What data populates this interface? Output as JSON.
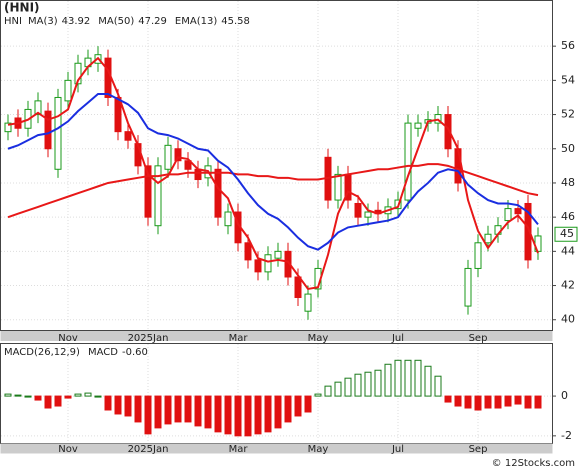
{
  "chart_data": {
    "type": "candlestick",
    "title": "(HNI)",
    "ticker": "HNI",
    "categories": [
      null,
      null,
      null,
      null,
      null,
      null,
      "Nov",
      null,
      null,
      null,
      null,
      null,
      null,
      null,
      "2025Jan",
      null,
      null,
      null,
      null,
      null,
      null,
      null,
      null,
      "Mar",
      null,
      null,
      null,
      null,
      null,
      null,
      null,
      "May",
      null,
      null,
      null,
      null,
      null,
      null,
      null,
      "Jul",
      null,
      null,
      null,
      null,
      null,
      null,
      null,
      "Sep",
      null,
      null,
      null,
      null,
      null,
      null
    ],
    "open": [
      51.0,
      51.8,
      51.2,
      52.0,
      52.2,
      48.8,
      52.8,
      53.8,
      54.8,
      55.0,
      55.3,
      53.0,
      51.0,
      50.3,
      49.0,
      45.5,
      48.8,
      50.0,
      49.3,
      48.8,
      48.3,
      48.8,
      45.5,
      46.3,
      44.5,
      43.5,
      42.8,
      43.6,
      44.0,
      42.5,
      40.5,
      41.8,
      49.5,
      47.0,
      48.5,
      46.8,
      46.0,
      46.4,
      46.2,
      46.5,
      47.0,
      51.2,
      51.5,
      51.5,
      52.0,
      50.0,
      40.8,
      43.0,
      44.5,
      45.0,
      45.8,
      46.5,
      46.8,
      44.0
    ],
    "high": [
      52.0,
      52.3,
      52.8,
      53.3,
      52.7,
      53.5,
      54.5,
      55.5,
      55.8,
      56.0,
      55.8,
      53.5,
      51.5,
      50.8,
      49.5,
      49.5,
      50.7,
      50.5,
      49.8,
      49.3,
      49.5,
      49.3,
      46.8,
      46.8,
      45.0,
      44.0,
      44.3,
      44.5,
      44.5,
      43.0,
      42.0,
      43.5,
      50.0,
      49.0,
      49.0,
      47.3,
      46.8,
      46.9,
      47.1,
      47.5,
      52.0,
      52.0,
      52.2,
      52.5,
      52.5,
      50.5,
      43.5,
      45.0,
      45.5,
      46.0,
      47.0,
      47.0,
      47.3,
      45.4
    ],
    "low": [
      50.5,
      50.7,
      50.7,
      51.5,
      49.5,
      48.3,
      52.3,
      53.3,
      54.3,
      54.5,
      52.5,
      50.5,
      50.0,
      48.5,
      45.5,
      45.0,
      48.3,
      48.8,
      48.3,
      47.7,
      47.8,
      45.5,
      45.0,
      44.0,
      43.0,
      42.3,
      42.3,
      43.1,
      42.0,
      40.8,
      40.0,
      41.3,
      46.5,
      46.5,
      46.5,
      45.5,
      45.5,
      45.7,
      45.7,
      46.0,
      46.5,
      50.7,
      51.0,
      51.0,
      49.5,
      47.5,
      40.3,
      42.5,
      44.0,
      44.5,
      45.3,
      45.7,
      43.0,
      43.5
    ],
    "close": [
      51.5,
      51.2,
      52.3,
      52.8,
      50.0,
      53.0,
      54.0,
      55.0,
      55.3,
      55.5,
      53.0,
      51.0,
      50.5,
      49.0,
      46.0,
      49.0,
      50.2,
      49.3,
      48.8,
      48.2,
      49.0,
      46.0,
      46.3,
      44.5,
      43.5,
      42.8,
      43.8,
      44.0,
      42.5,
      41.3,
      41.5,
      43.0,
      47.0,
      48.5,
      47.0,
      46.0,
      46.3,
      46.2,
      46.6,
      47.0,
      51.5,
      51.5,
      51.7,
      52.0,
      50.0,
      48.0,
      43.0,
      44.5,
      45.0,
      45.5,
      46.5,
      46.2,
      43.5,
      44.9
    ],
    "up_color": "#1a9a1a",
    "down_color": "#e01010",
    "series": [
      {
        "name": "MA(3)",
        "last": 43.92,
        "color": "#e81818",
        "values": [
          51.4,
          51.5,
          51.7,
          52.1,
          51.7,
          51.9,
          52.3,
          54.0,
          54.8,
          55.3,
          54.6,
          53.2,
          51.5,
          50.2,
          48.5,
          48.0,
          48.4,
          49.5,
          49.4,
          48.8,
          48.7,
          47.7,
          47.1,
          45.6,
          44.8,
          43.6,
          43.4,
          43.5,
          43.4,
          42.6,
          41.8,
          41.9,
          43.8,
          46.2,
          47.5,
          47.2,
          46.4,
          46.2,
          46.4,
          46.6,
          48.4,
          50.0,
          51.6,
          51.7,
          51.2,
          50.0,
          47.0,
          45.2,
          44.2,
          45.0,
          45.7,
          46.1,
          45.4,
          43.9
        ]
      },
      {
        "name": "MA(50)",
        "last": 47.29,
        "color": "#e81818",
        "values": [
          46.0,
          46.2,
          46.4,
          46.6,
          46.8,
          47.0,
          47.2,
          47.4,
          47.6,
          47.8,
          48.0,
          48.1,
          48.2,
          48.3,
          48.4,
          48.4,
          48.5,
          48.5,
          48.6,
          48.6,
          48.6,
          48.6,
          48.6,
          48.5,
          48.5,
          48.4,
          48.4,
          48.3,
          48.3,
          48.2,
          48.2,
          48.2,
          48.3,
          48.4,
          48.5,
          48.6,
          48.7,
          48.8,
          48.8,
          48.9,
          49.0,
          49.0,
          49.1,
          49.1,
          49.0,
          48.8,
          48.6,
          48.4,
          48.2,
          48.0,
          47.8,
          47.6,
          47.4,
          47.29
        ]
      },
      {
        "name": "EMA(13)",
        "last": 45.58,
        "color": "#1a2ee0",
        "values": [
          50.0,
          50.2,
          50.5,
          50.8,
          50.9,
          51.2,
          51.6,
          52.2,
          52.7,
          53.2,
          53.2,
          52.9,
          52.6,
          52.1,
          51.2,
          50.9,
          50.8,
          50.6,
          50.3,
          50.0,
          49.9,
          49.3,
          48.9,
          48.2,
          47.4,
          46.7,
          46.2,
          45.9,
          45.4,
          44.8,
          44.3,
          44.1,
          44.5,
          45.1,
          45.4,
          45.5,
          45.6,
          45.7,
          45.8,
          46.0,
          46.8,
          47.5,
          48.0,
          48.6,
          48.8,
          48.7,
          47.9,
          47.4,
          47.0,
          46.8,
          46.8,
          46.7,
          46.3,
          45.58
        ]
      }
    ],
    "last_price": 45,
    "ylim": [
      39.4,
      58.7
    ],
    "yticks": [
      40,
      42,
      44,
      46,
      48,
      50,
      52,
      54,
      56
    ],
    "macd": {
      "title": "MACD(26,12,9)",
      "name": "MACD",
      "last": -0.6,
      "last_label": "-0.60",
      "values": [
        0.1,
        0.05,
        0,
        -0.2,
        -0.6,
        -0.5,
        -0.1,
        0.1,
        0.15,
        0,
        -0.7,
        -0.9,
        -1.0,
        -1.3,
        -1.9,
        -1.6,
        -1.4,
        -1.3,
        -1.3,
        -1.5,
        -1.6,
        -1.8,
        -1.9,
        -2.0,
        -2.0,
        -1.9,
        -1.8,
        -1.6,
        -1.3,
        -1.0,
        -0.8,
        0.1,
        0.5,
        0.7,
        0.9,
        1.1,
        1.2,
        1.3,
        1.6,
        1.8,
        1.8,
        1.8,
        1.5,
        1.0,
        -0.3,
        -0.5,
        -0.6,
        -0.7,
        -0.6,
        -0.6,
        -0.5,
        -0.4,
        -0.6,
        -0.6
      ],
      "ylim": [
        -2.36,
        2.67
      ],
      "yticks": [
        -2,
        0
      ],
      "up_color": "#1a7a1a",
      "down_color": "#e01010"
    },
    "watermark": "© 12Stocks.com"
  }
}
